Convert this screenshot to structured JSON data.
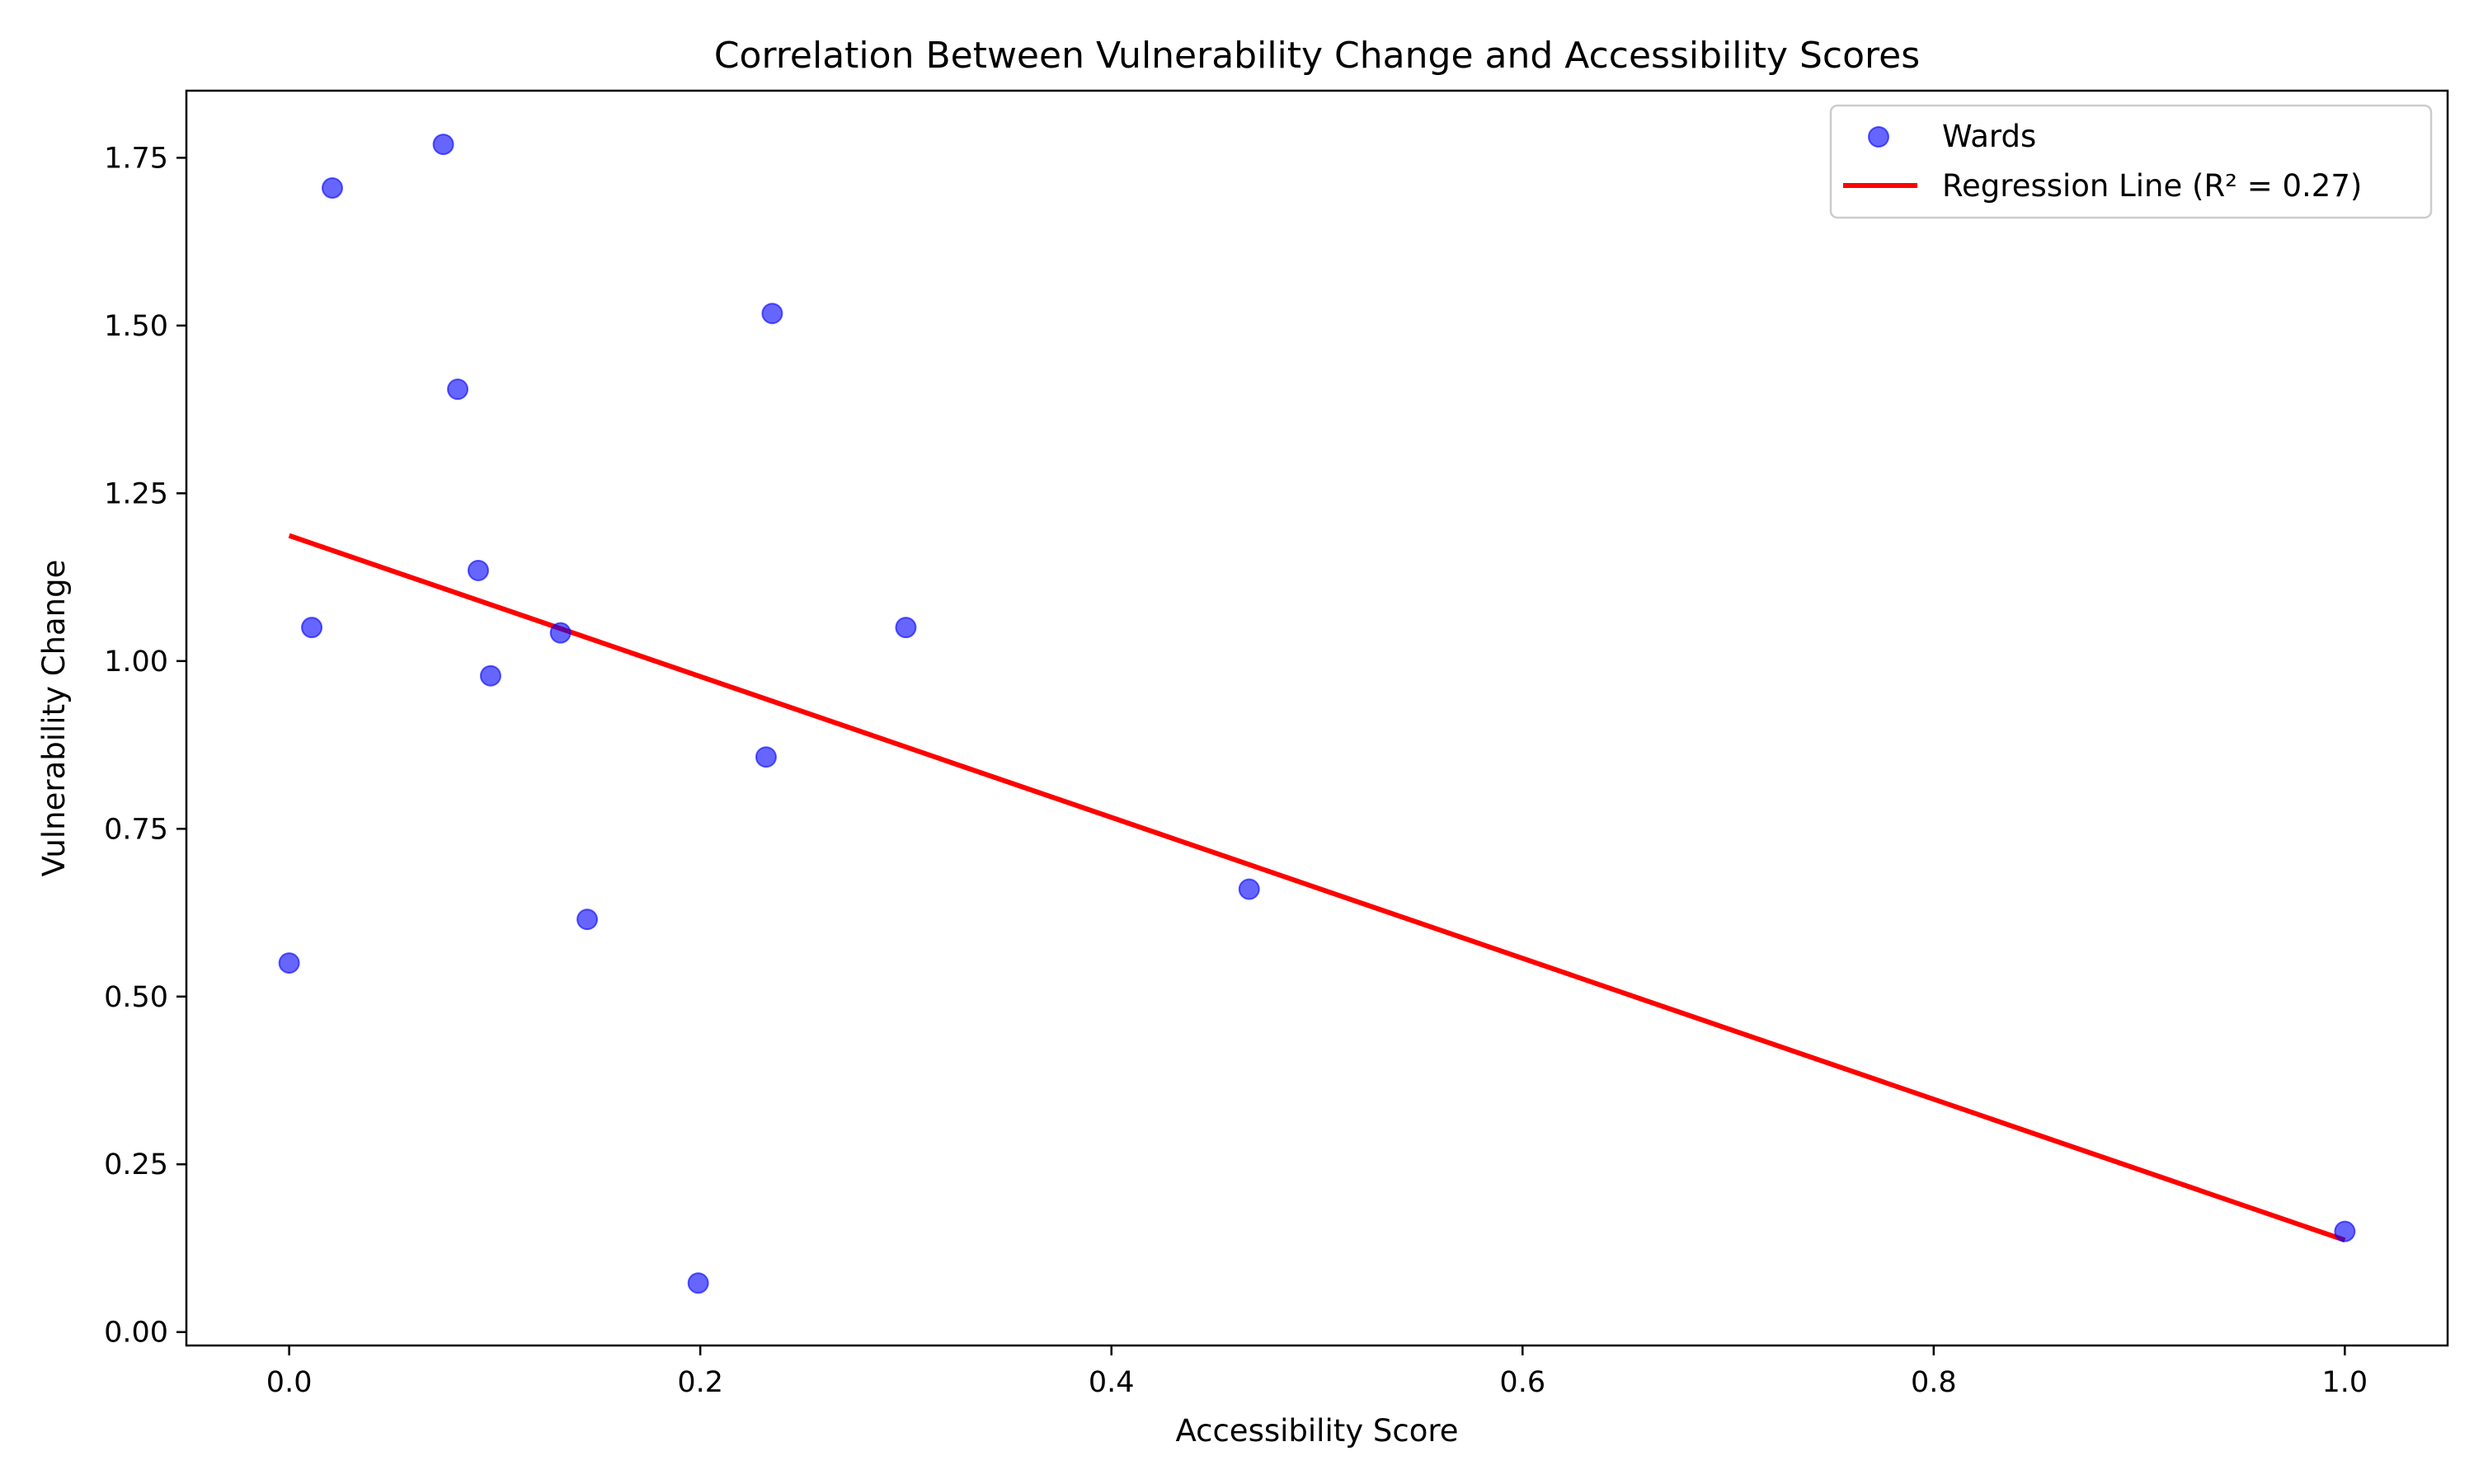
{
  "chart_data": {
    "type": "scatter",
    "title": "Correlation Between Vulnerability Change and Accessibility Scores",
    "xlabel": "Accessibility Score",
    "ylabel": "Vulnerability Change",
    "xlim": [
      -0.05,
      1.05
    ],
    "ylim": [
      -0.02,
      1.85
    ],
    "xticks": [
      0.0,
      0.2,
      0.4,
      0.6,
      0.8,
      1.0
    ],
    "xtick_labels": [
      "0.0",
      "0.2",
      "0.4",
      "0.6",
      "0.8",
      "1.0"
    ],
    "yticks": [
      0.0,
      0.25,
      0.5,
      0.75,
      1.0,
      1.25,
      1.5,
      1.75
    ],
    "ytick_labels": [
      "0.00",
      "0.25",
      "0.50",
      "0.75",
      "1.00",
      "1.25",
      "1.50",
      "1.75"
    ],
    "grid": false,
    "legend_position": "top-right",
    "series": [
      {
        "name": "Wards",
        "kind": "scatter",
        "color": "#0000ff",
        "points": [
          {
            "x": 0.0,
            "y": 0.55
          },
          {
            "x": 0.011,
            "y": 1.05
          },
          {
            "x": 0.021,
            "y": 1.705
          },
          {
            "x": 0.075,
            "y": 1.77
          },
          {
            "x": 0.082,
            "y": 1.405
          },
          {
            "x": 0.092,
            "y": 1.135
          },
          {
            "x": 0.098,
            "y": 0.978
          },
          {
            "x": 0.132,
            "y": 1.042
          },
          {
            "x": 0.145,
            "y": 0.615
          },
          {
            "x": 0.199,
            "y": 0.073
          },
          {
            "x": 0.232,
            "y": 0.857
          },
          {
            "x": 0.235,
            "y": 1.518
          },
          {
            "x": 0.3,
            "y": 1.05
          },
          {
            "x": 0.467,
            "y": 0.66
          },
          {
            "x": 1.0,
            "y": 0.15
          }
        ]
      },
      {
        "name": "Regression Line (R² = 0.27)",
        "kind": "line",
        "color": "#ff0000",
        "points": [
          {
            "x": 0.0,
            "y": 1.187
          },
          {
            "x": 1.0,
            "y": 0.137
          }
        ]
      }
    ]
  }
}
